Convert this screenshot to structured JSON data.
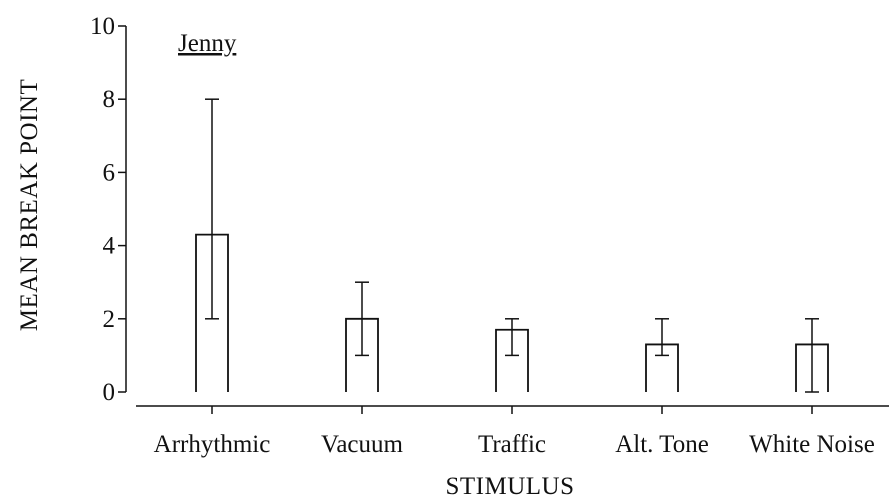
{
  "chart_data": {
    "type": "bar",
    "title": "",
    "xlabel": "STIMULUS",
    "ylabel": "MEAN BREAK POINT",
    "annotation": "Jenny",
    "ylim": [
      0,
      10
    ],
    "yticks": [
      0,
      2,
      4,
      6,
      8,
      10
    ],
    "yticklabels": [
      "0",
      "2",
      "4",
      "6",
      "8",
      "10"
    ],
    "categories": [
      "Arrhythmic",
      "Vacuum",
      "Traffic",
      "Alt. Tone",
      "White Noise"
    ],
    "values": [
      4.3,
      2.0,
      1.7,
      1.3,
      1.3
    ],
    "error_low": [
      2.0,
      1.0,
      1.0,
      1.0,
      0.0
    ],
    "error_high": [
      8.0,
      3.0,
      2.0,
      2.0,
      2.0
    ],
    "grid": false,
    "legend": "none",
    "colors": {
      "bar_fill": "#ffffff",
      "stroke": "#111111",
      "text": "#111111"
    }
  }
}
